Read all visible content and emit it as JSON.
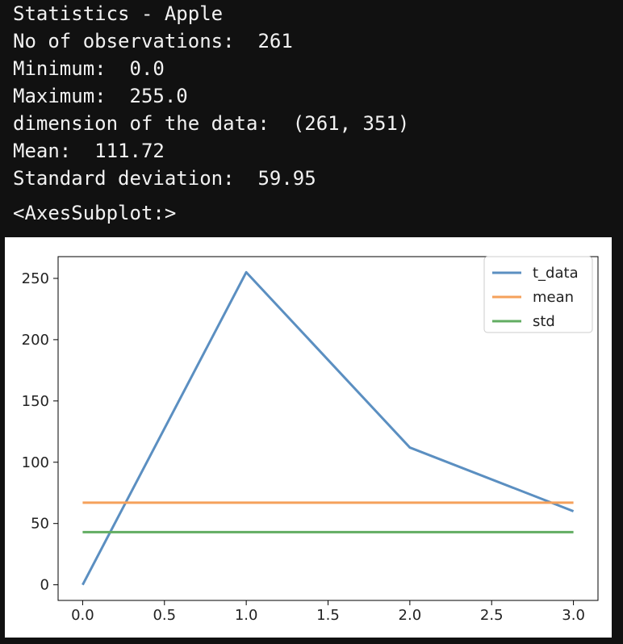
{
  "stats": {
    "title": "Statistics - Apple",
    "lines": [
      {
        "label": "No of observations:",
        "value": "261"
      },
      {
        "label": "Minimum:",
        "value": "0.0"
      },
      {
        "label": "Maximum:",
        "value": "255.0"
      },
      {
        "label": "dimension of the data:",
        "value": "(261, 351)"
      },
      {
        "label": "Mean:",
        "value": "111.72"
      },
      {
        "label": "Standard deviation:",
        "value": "59.95"
      }
    ]
  },
  "repr": "<AxesSubplot:>",
  "colors": {
    "background": "#111111",
    "text": "#f2f2f2",
    "t_data": "#5b8fc1",
    "mean": "#f5a15b",
    "std": "#62ad62"
  },
  "chart_data": {
    "type": "line",
    "title": "",
    "xlabel": "",
    "ylabel": "",
    "xlim": [
      -0.15,
      3.15
    ],
    "ylim": [
      -12.75,
      267.75
    ],
    "xticks": [
      "0.0",
      "0.5",
      "1.0",
      "1.5",
      "2.0",
      "2.5",
      "3.0"
    ],
    "yticks": [
      "0",
      "50",
      "100",
      "150",
      "200",
      "250"
    ],
    "grid": false,
    "legend_position": "upper right",
    "series": [
      {
        "name": "t_data",
        "color": "#5b8fc1",
        "x": [
          0,
          1,
          2,
          3
        ],
        "y": [
          0,
          255,
          112,
          60
        ]
      },
      {
        "name": "mean",
        "color": "#f5a15b",
        "x": [
          0,
          1,
          2,
          3
        ],
        "y": [
          67,
          67,
          67,
          67
        ]
      },
      {
        "name": "std",
        "color": "#62ad62",
        "x": [
          0,
          1,
          2,
          3
        ],
        "y": [
          43,
          43,
          43,
          43
        ]
      }
    ]
  }
}
